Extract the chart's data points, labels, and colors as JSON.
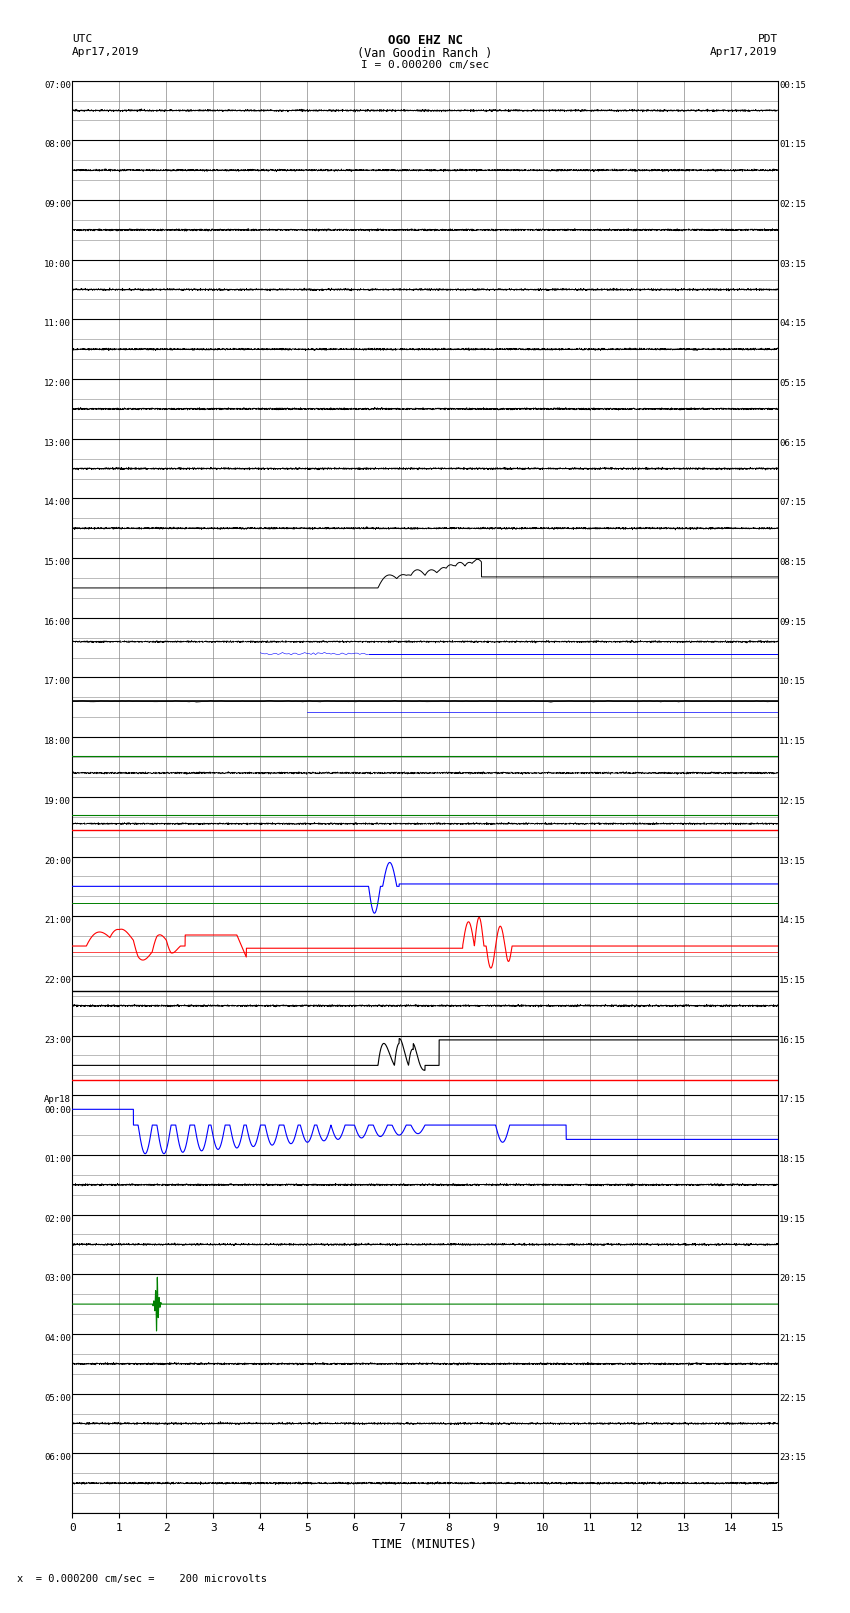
{
  "title_line1": "OGO EHZ NC",
  "title_line2": "(Van Goodin Ranch )",
  "title_line3": "I = 0.000200 cm/sec",
  "left_top_label": "UTC",
  "left_date": "Apr17,2019",
  "right_top_label": "PDT",
  "right_date": "Apr17,2019",
  "bottom_label": "TIME (MINUTES)",
  "bottom_note": "x  = 0.000200 cm/sec =    200 microvolts",
  "utc_times": [
    "07:00",
    "08:00",
    "09:00",
    "10:00",
    "11:00",
    "12:00",
    "13:00",
    "14:00",
    "15:00",
    "16:00",
    "17:00",
    "18:00",
    "19:00",
    "20:00",
    "21:00",
    "22:00",
    "23:00",
    "Apr18\n00:00",
    "01:00",
    "02:00",
    "03:00",
    "04:00",
    "05:00",
    "06:00"
  ],
  "pdt_times": [
    "00:15",
    "01:15",
    "02:15",
    "03:15",
    "04:15",
    "05:15",
    "06:15",
    "07:15",
    "08:15",
    "09:15",
    "10:15",
    "11:15",
    "12:15",
    "13:15",
    "14:15",
    "15:15",
    "16:15",
    "17:15",
    "18:15",
    "19:15",
    "20:15",
    "21:15",
    "22:15",
    "23:15"
  ],
  "num_rows": 24,
  "sub_rows": 3,
  "x_min": 0,
  "x_max": 15,
  "background_color": "#ffffff",
  "major_grid_color": "#000000",
  "minor_grid_color": "#888888",
  "fig_width": 8.5,
  "fig_height": 16.13
}
